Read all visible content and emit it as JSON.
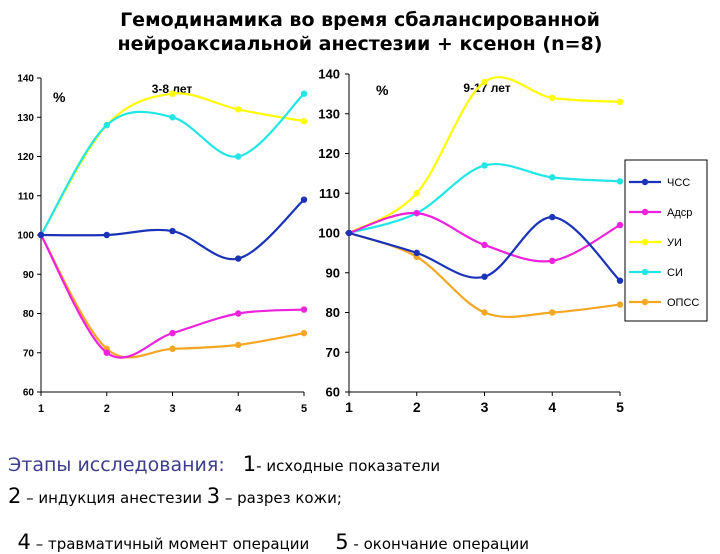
{
  "title_line1": "Гемодинамика во время сбалансированной",
  "title_line2": "нейроаксиальной анестезии + ксенон (n=8)",
  "colors": {
    "ЧСС": "#1a33b8",
    "Адср": "#ee22dd",
    "УИ": "#ffff00",
    "СИ": "#22e6e6",
    "ОПСС": "#f5a623"
  },
  "chart_data": [
    {
      "type": "line",
      "subtitle": "3-8 лет",
      "ylabel": "%",
      "x": [
        1,
        2,
        3,
        4,
        5
      ],
      "ylim": [
        60,
        140
      ],
      "yticks": [
        60,
        70,
        80,
        90,
        100,
        110,
        120,
        130,
        140
      ],
      "grid": false,
      "series": [
        {
          "name": "ЧСС",
          "values": [
            100,
            100,
            101,
            94,
            109
          ]
        },
        {
          "name": "Адср",
          "values": [
            100,
            70,
            75,
            80,
            81
          ]
        },
        {
          "name": "УИ",
          "values": [
            100,
            128,
            136,
            132,
            129
          ]
        },
        {
          "name": "СИ",
          "values": [
            100,
            128,
            130,
            120,
            136
          ]
        },
        {
          "name": "ОПСС",
          "values": [
            100,
            71,
            71,
            72,
            75
          ]
        }
      ]
    },
    {
      "type": "line",
      "subtitle": "9-17 лет",
      "ylabel": "%",
      "x": [
        1,
        2,
        3,
        4,
        5
      ],
      "ylim": [
        60,
        140
      ],
      "yticks": [
        60,
        70,
        80,
        90,
        100,
        110,
        120,
        130,
        140
      ],
      "grid": false,
      "legend": "right",
      "series": [
        {
          "name": "ЧСС",
          "values": [
            100,
            95,
            89,
            104,
            88
          ]
        },
        {
          "name": "Адср",
          "values": [
            100,
            105,
            97,
            93,
            102
          ]
        },
        {
          "name": "УИ",
          "values": [
            100,
            110,
            138,
            134,
            133
          ]
        },
        {
          "name": "СИ",
          "values": [
            100,
            105,
            117,
            114,
            113
          ]
        },
        {
          "name": "ОПСС",
          "values": [
            100,
            94,
            80,
            80,
            82
          ]
        }
      ]
    }
  ],
  "footer": {
    "line1_label": "Этапы исследования:",
    "line1_num": "1",
    "line1_text": "- исходные показатели",
    "line2_num2": "2",
    "line2_text2": " – индукция анестезии ",
    "line2_num3": "3",
    "line2_text3": " – разрез кожи;",
    "line3_num4": "4",
    "line3_text4": " – травматичный момент операции",
    "line3_num5": "5",
    "line3_text5": " - окончание операции"
  }
}
